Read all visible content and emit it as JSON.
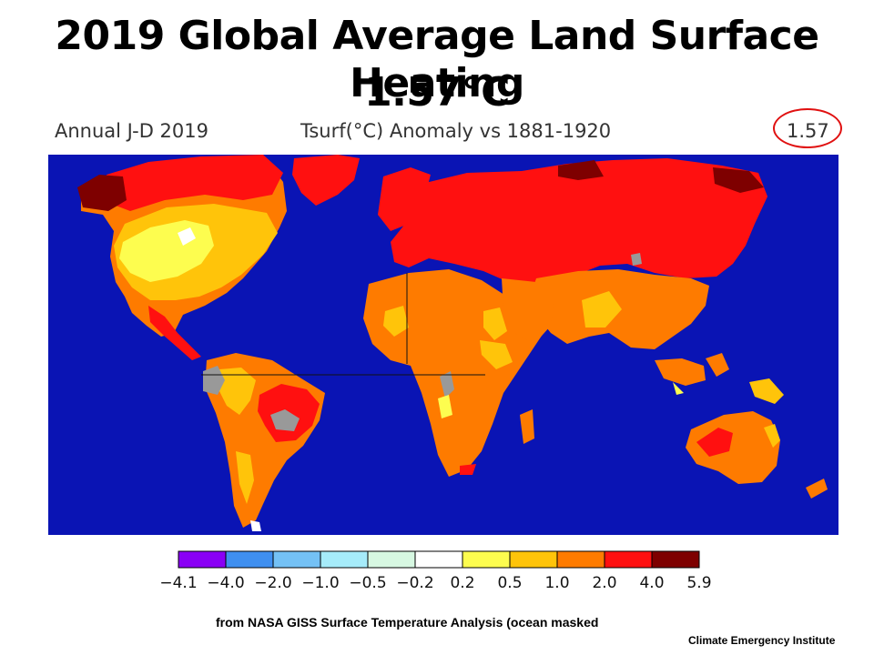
{
  "slide": {
    "title_line1": "2019 Global Average Land Surface Heating",
    "title_line2": "1.57°C"
  },
  "map_header": {
    "period": "Annual J-D 2019",
    "variable": "Tsurf(°C) Anomaly vs 1881-1920",
    "global_mean": "1.57"
  },
  "legend": {
    "ticks": [
      "−4.1",
      "−4.0",
      "−2.0",
      "−1.0",
      "−0.5",
      "−0.2",
      "0.2",
      "0.5",
      "1.0",
      "2.0",
      "4.0",
      "5.9"
    ],
    "colors": [
      "#8a00f5",
      "#3f8ff0",
      "#74c1f5",
      "#a6ecfa",
      "#d7f8e2",
      "#ffffff",
      "#fdfd4f",
      "#ffc40a",
      "#fe7b00",
      "#ff1010",
      "#7e0000"
    ]
  },
  "colors": {
    "ocean": "#0a14b4",
    "no_data": "#999999",
    "highlight_circle": "#e01010"
  },
  "footer": {
    "credit": "from NASA GISS Surface Temperature Analysis (ocean masked",
    "org": "Climate Emergency Institute"
  }
}
